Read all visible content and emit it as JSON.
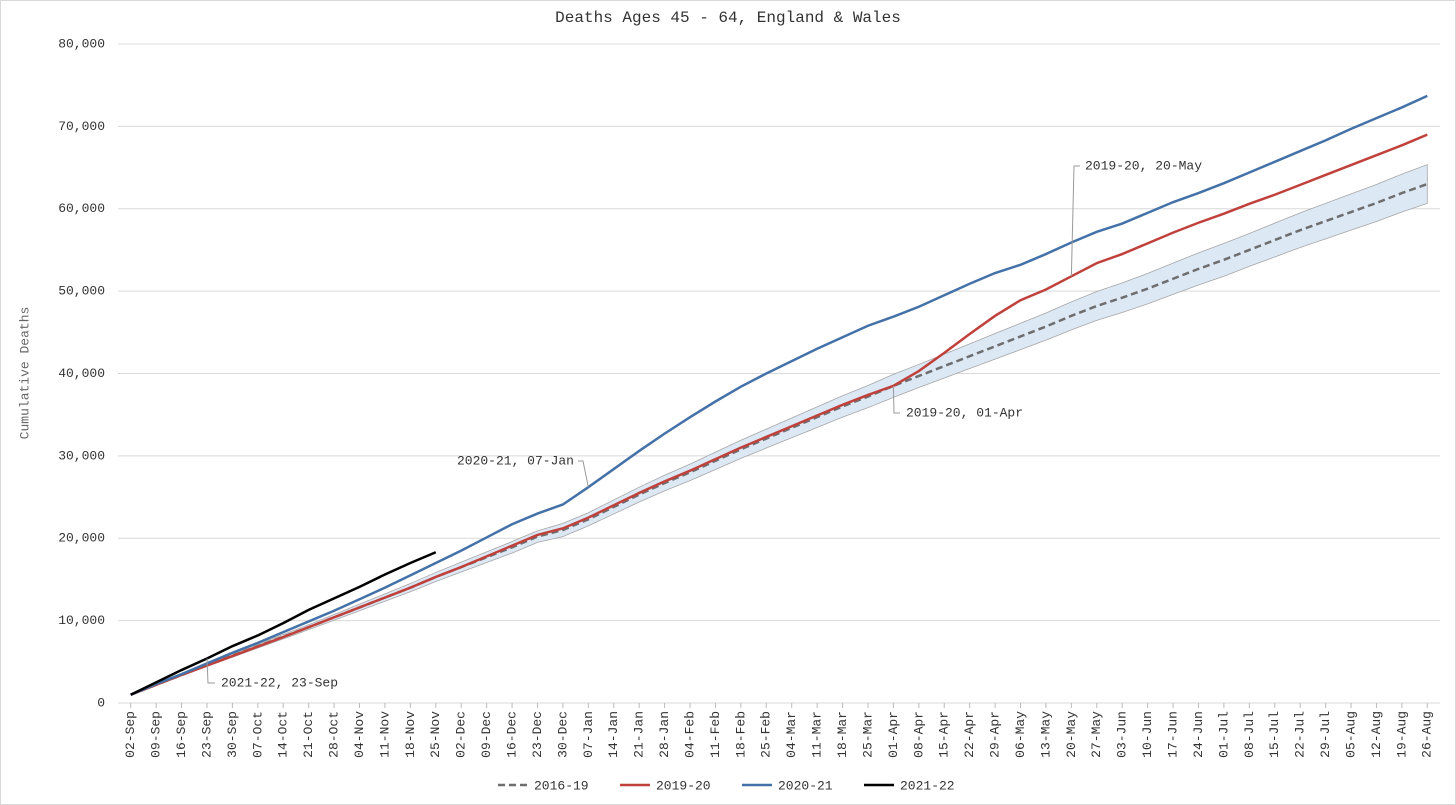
{
  "chart_data": {
    "type": "line",
    "title": "Deaths Ages 45 - 64, England & Wales",
    "y_label": "Cumulative Deaths",
    "categories": [
      "02-Sep",
      "09-Sep",
      "16-Sep",
      "23-Sep",
      "30-Sep",
      "07-Oct",
      "14-Oct",
      "21-Oct",
      "28-Oct",
      "04-Nov",
      "11-Nov",
      "18-Nov",
      "25-Nov",
      "02-Dec",
      "09-Dec",
      "16-Dec",
      "23-Dec",
      "30-Dec",
      "07-Jan",
      "14-Jan",
      "21-Jan",
      "28-Jan",
      "04-Feb",
      "11-Feb",
      "18-Feb",
      "25-Feb",
      "04-Mar",
      "11-Mar",
      "18-Mar",
      "25-Mar",
      "01-Apr",
      "08-Apr",
      "15-Apr",
      "22-Apr",
      "29-Apr",
      "06-May",
      "13-May",
      "20-May",
      "27-May",
      "03-Jun",
      "10-Jun",
      "17-Jun",
      "24-Jun",
      "01-Jul",
      "08-Jul",
      "15-Jul",
      "22-Jul",
      "29-Jul",
      "05-Aug",
      "12-Aug",
      "19-Aug",
      "26-Aug"
    ],
    "band": {
      "color": "#dde8f5",
      "upper": [
        1000,
        2250,
        3500,
        4750,
        5950,
        7120,
        8320,
        9500,
        10750,
        12000,
        13250,
        14500,
        15850,
        17100,
        18350,
        19600,
        20900,
        21800,
        23100,
        24650,
        26200,
        27650,
        29000,
        30450,
        31900,
        33250,
        34600,
        35950,
        37300,
        38550,
        39900,
        41100,
        42350,
        43600,
        44850,
        46100,
        47350,
        48700,
        49950,
        51000,
        52150,
        53400,
        54650,
        55800,
        57000,
        58250,
        59500,
        60650,
        61800,
        62950,
        64200,
        65350
      ],
      "lower": [
        1000,
        2150,
        3300,
        4450,
        5550,
        6680,
        7780,
        8900,
        10050,
        11200,
        12350,
        13500,
        14750,
        15900,
        17050,
        18200,
        19500,
        20200,
        21500,
        22950,
        24400,
        25750,
        27000,
        28350,
        29700,
        30950,
        32200,
        33450,
        34700,
        35850,
        37100,
        38300,
        39450,
        40600,
        41750,
        42900,
        44050,
        45300,
        46450,
        47400,
        48450,
        49600,
        50750,
        51800,
        53000,
        54150,
        55300,
        56350,
        57400,
        58450,
        59600,
        60650
      ]
    },
    "series": [
      {
        "name": "2016-19",
        "color": "#6e6e6e",
        "dashed": true,
        "values": [
          1000,
          2200,
          3400,
          4600,
          5750,
          6900,
          8050,
          9200,
          10400,
          11600,
          12800,
          14000,
          15300,
          16500,
          17700,
          18900,
          20200,
          21000,
          22300,
          23800,
          25300,
          26700,
          28000,
          29400,
          30800,
          32100,
          33400,
          34700,
          36000,
          37200,
          38500,
          39700,
          40900,
          42100,
          43300,
          44500,
          45700,
          47000,
          48200,
          49200,
          50300,
          51500,
          52700,
          53800,
          55000,
          56200,
          57400,
          58500,
          59600,
          60700,
          61900,
          63000
        ]
      },
      {
        "name": "2019-20",
        "color": "#c0413b",
        "values": [
          1000,
          2200,
          3400,
          4550,
          5700,
          6850,
          8000,
          9200,
          10400,
          11600,
          12800,
          14000,
          15300,
          16500,
          17800,
          19100,
          20400,
          21200,
          22500,
          24000,
          25500,
          26900,
          28200,
          29600,
          31000,
          32300,
          33600,
          34900,
          36200,
          37400,
          38500,
          40300,
          42500,
          44800,
          47000,
          48900,
          50200,
          51800,
          53400,
          54500,
          55800,
          57100,
          58300,
          59400,
          60600,
          61700,
          62900,
          64100,
          65300,
          66500,
          67700,
          69000
        ]
      },
      {
        "name": "2020-21",
        "color": "#4472a8",
        "values": [
          1000,
          2300,
          3500,
          4800,
          6100,
          7300,
          8600,
          9900,
          11200,
          12600,
          14000,
          15500,
          17000,
          18500,
          20100,
          21700,
          23000,
          24100,
          26200,
          28400,
          30600,
          32700,
          34700,
          36600,
          38400,
          40000,
          41500,
          43000,
          44400,
          45800,
          46900,
          48100,
          49500,
          50900,
          52200,
          53200,
          54500,
          55900,
          57200,
          58200,
          59500,
          60800,
          61900,
          63100,
          64400,
          65700,
          67000,
          68300,
          69700,
          71000,
          72300,
          73700
        ]
      },
      {
        "name": "2021-22",
        "color": "#000000",
        "values": [
          1000,
          2500,
          4000,
          5400,
          6900,
          8200,
          9700,
          11300,
          12700,
          14100,
          15600,
          17000,
          18300,
          null,
          null,
          null,
          null,
          null,
          null,
          null,
          null,
          null,
          null,
          null,
          null,
          null,
          null,
          null,
          null,
          null,
          null,
          null,
          null,
          null,
          null,
          null,
          null,
          null,
          null,
          null,
          null,
          null,
          null,
          null,
          null,
          null,
          null,
          null,
          null,
          null,
          null,
          null
        ]
      }
    ],
    "ylim": [
      0,
      80000
    ],
    "yticks": [
      0,
      {
        "value": 10000,
        "label": "10,000"
      },
      {
        "value": 20000,
        "label": "20,000"
      },
      {
        "value": 30000,
        "label": "30,000"
      },
      {
        "value": 40000,
        "label": "40,000"
      },
      {
        "value": 50000,
        "label": "50,000"
      },
      {
        "value": 60000,
        "label": "60,000"
      },
      {
        "value": 70000,
        "label": "70,000"
      },
      {
        "value": 80000,
        "label": "80,000"
      }
    ],
    "grid": true,
    "legend": "bottom",
    "annotations": [
      "2020-21, 07-Jan",
      "2019-20, 01-Apr",
      "2019-20, 20-May",
      "2021-22, 23-Sep"
    ]
  }
}
